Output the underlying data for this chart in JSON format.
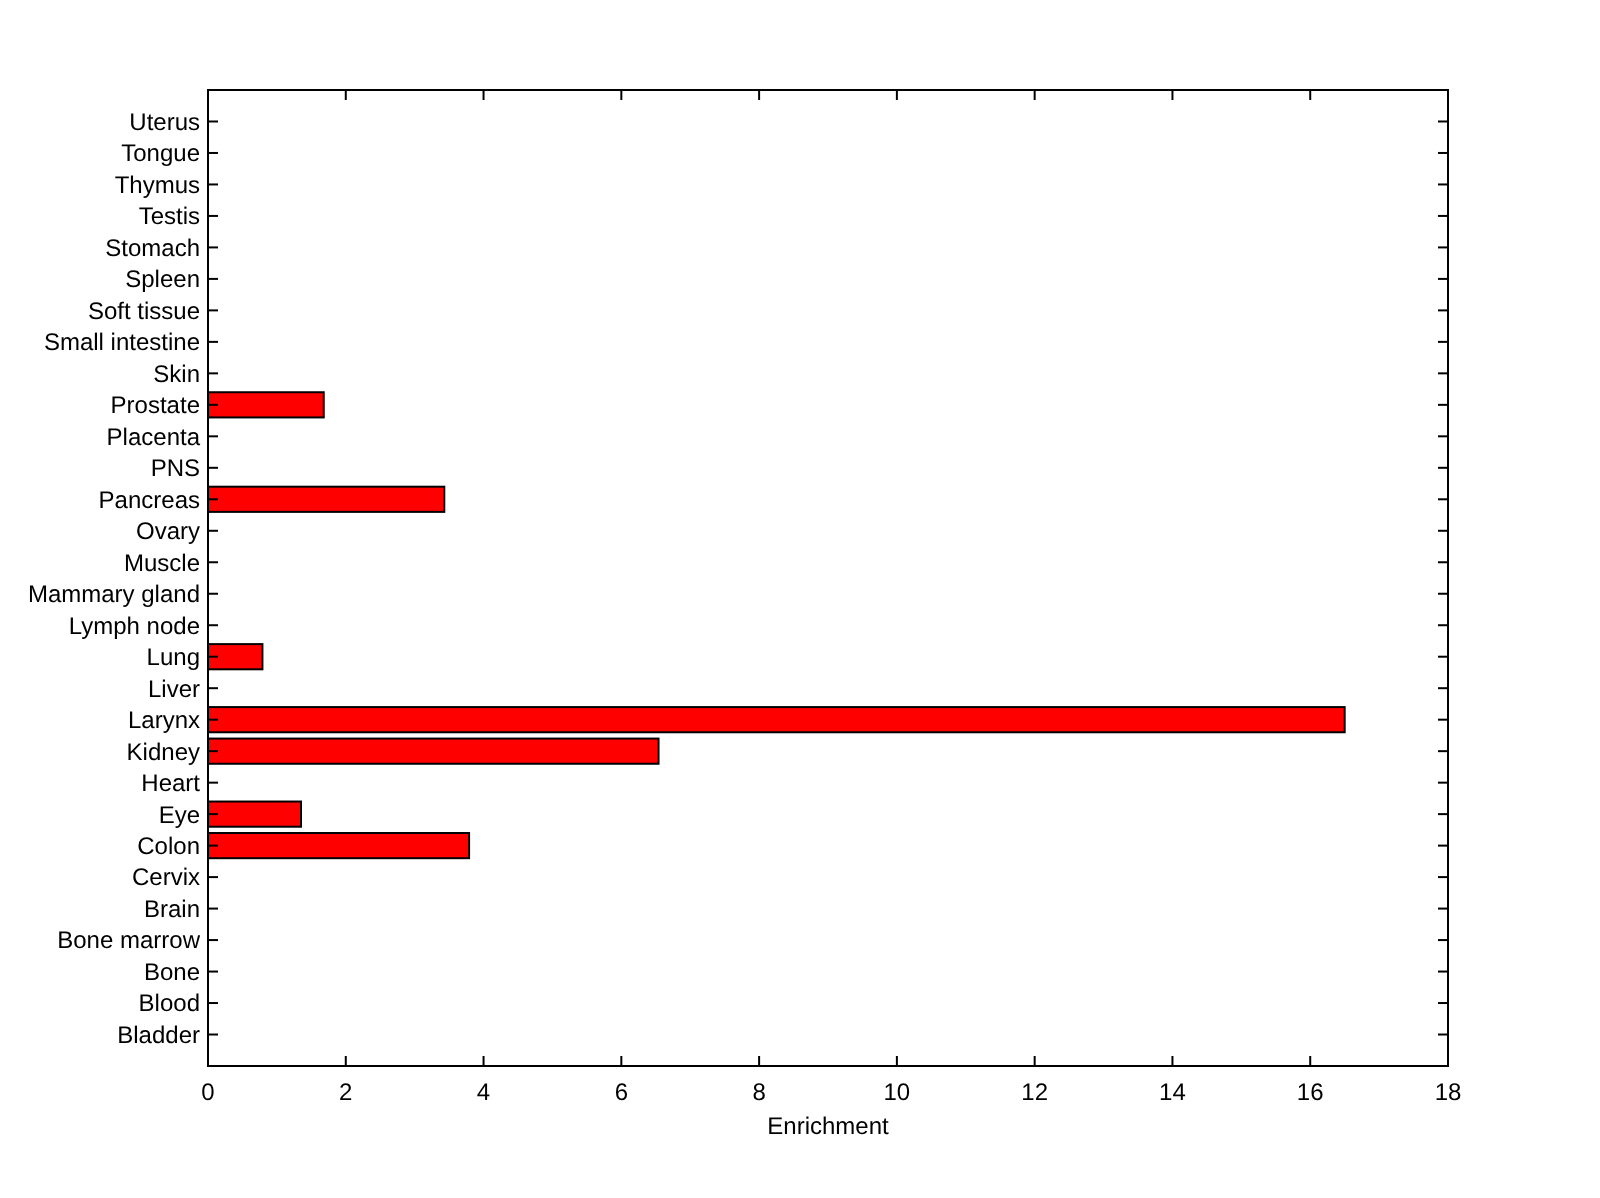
{
  "chart_data": {
    "type": "bar",
    "orientation": "horizontal",
    "xlabel": "Enrichment",
    "categories": [
      "Uterus",
      "Tongue",
      "Thymus",
      "Testis",
      "Stomach",
      "Spleen",
      "Soft tissue",
      "Small intestine",
      "Skin",
      "Prostate",
      "Placenta",
      "PNS",
      "Pancreas",
      "Ovary",
      "Muscle",
      "Mammary gland",
      "Lymph node",
      "Lung",
      "Liver",
      "Larynx",
      "Kidney",
      "Heart",
      "Eye",
      "Colon",
      "Cervix",
      "Brain",
      "Bone marrow",
      "Bone",
      "Blood",
      "Bladder"
    ],
    "values": [
      0,
      0,
      0,
      0,
      0,
      0,
      0,
      0,
      0,
      1.68,
      0,
      0,
      3.43,
      0,
      0,
      0,
      0,
      0.79,
      0,
      16.5,
      6.54,
      0,
      1.35,
      3.79,
      0,
      0,
      0,
      0,
      0,
      0
    ],
    "color": "#ff0000",
    "xlim": [
      0,
      18
    ],
    "xticks": [
      0,
      2,
      4,
      6,
      8,
      10,
      12,
      14,
      16,
      18
    ]
  }
}
